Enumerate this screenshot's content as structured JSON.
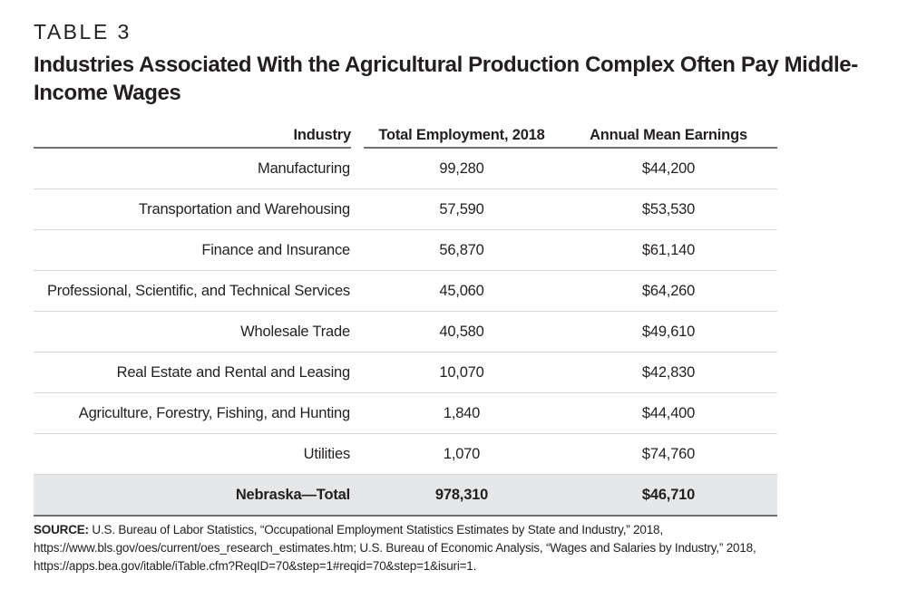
{
  "label": "TABLE 3",
  "title": "Industries Associated With the Agricultural Production Complex Often Pay Middle-Income Wages",
  "table": {
    "headers": [
      "Industry",
      "Total Employment, 2018",
      "Annual Mean Earnings"
    ],
    "rows": [
      [
        "Manufacturing",
        "99,280",
        "$44,200"
      ],
      [
        "Transportation and Warehousing",
        "57,590",
        "$53,530"
      ],
      [
        "Finance and Insurance",
        "56,870",
        "$61,140"
      ],
      [
        "Professional, Scientific, and Technical Services",
        "45,060",
        "$64,260"
      ],
      [
        "Wholesale Trade",
        "40,580",
        "$49,610"
      ],
      [
        "Real Estate and Rental and Leasing",
        "10,070",
        "$42,830"
      ],
      [
        "Agriculture, Forestry, Fishing, and Hunting",
        "1,840",
        "$44,400"
      ],
      [
        "Utilities",
        "1,070",
        "$74,760"
      ]
    ],
    "total": [
      "Nebraska—Total",
      "978,310",
      "$46,710"
    ]
  },
  "source": {
    "label": "SOURCE:",
    "text": "U.S. Bureau of Labor Statistics, “Occupational Employment Statistics Estimates by State and Industry,” 2018, https://www.bls.gov/oes/current/oes_research_estimates.htm; U.S. Bureau of Economic Analysis, “Wages and Salaries by Industry,” 2018, https://apps.bea.gov/itable/iTable.cfm?ReqID=70&step=1#reqid=70&step=1&isuri=1."
  }
}
